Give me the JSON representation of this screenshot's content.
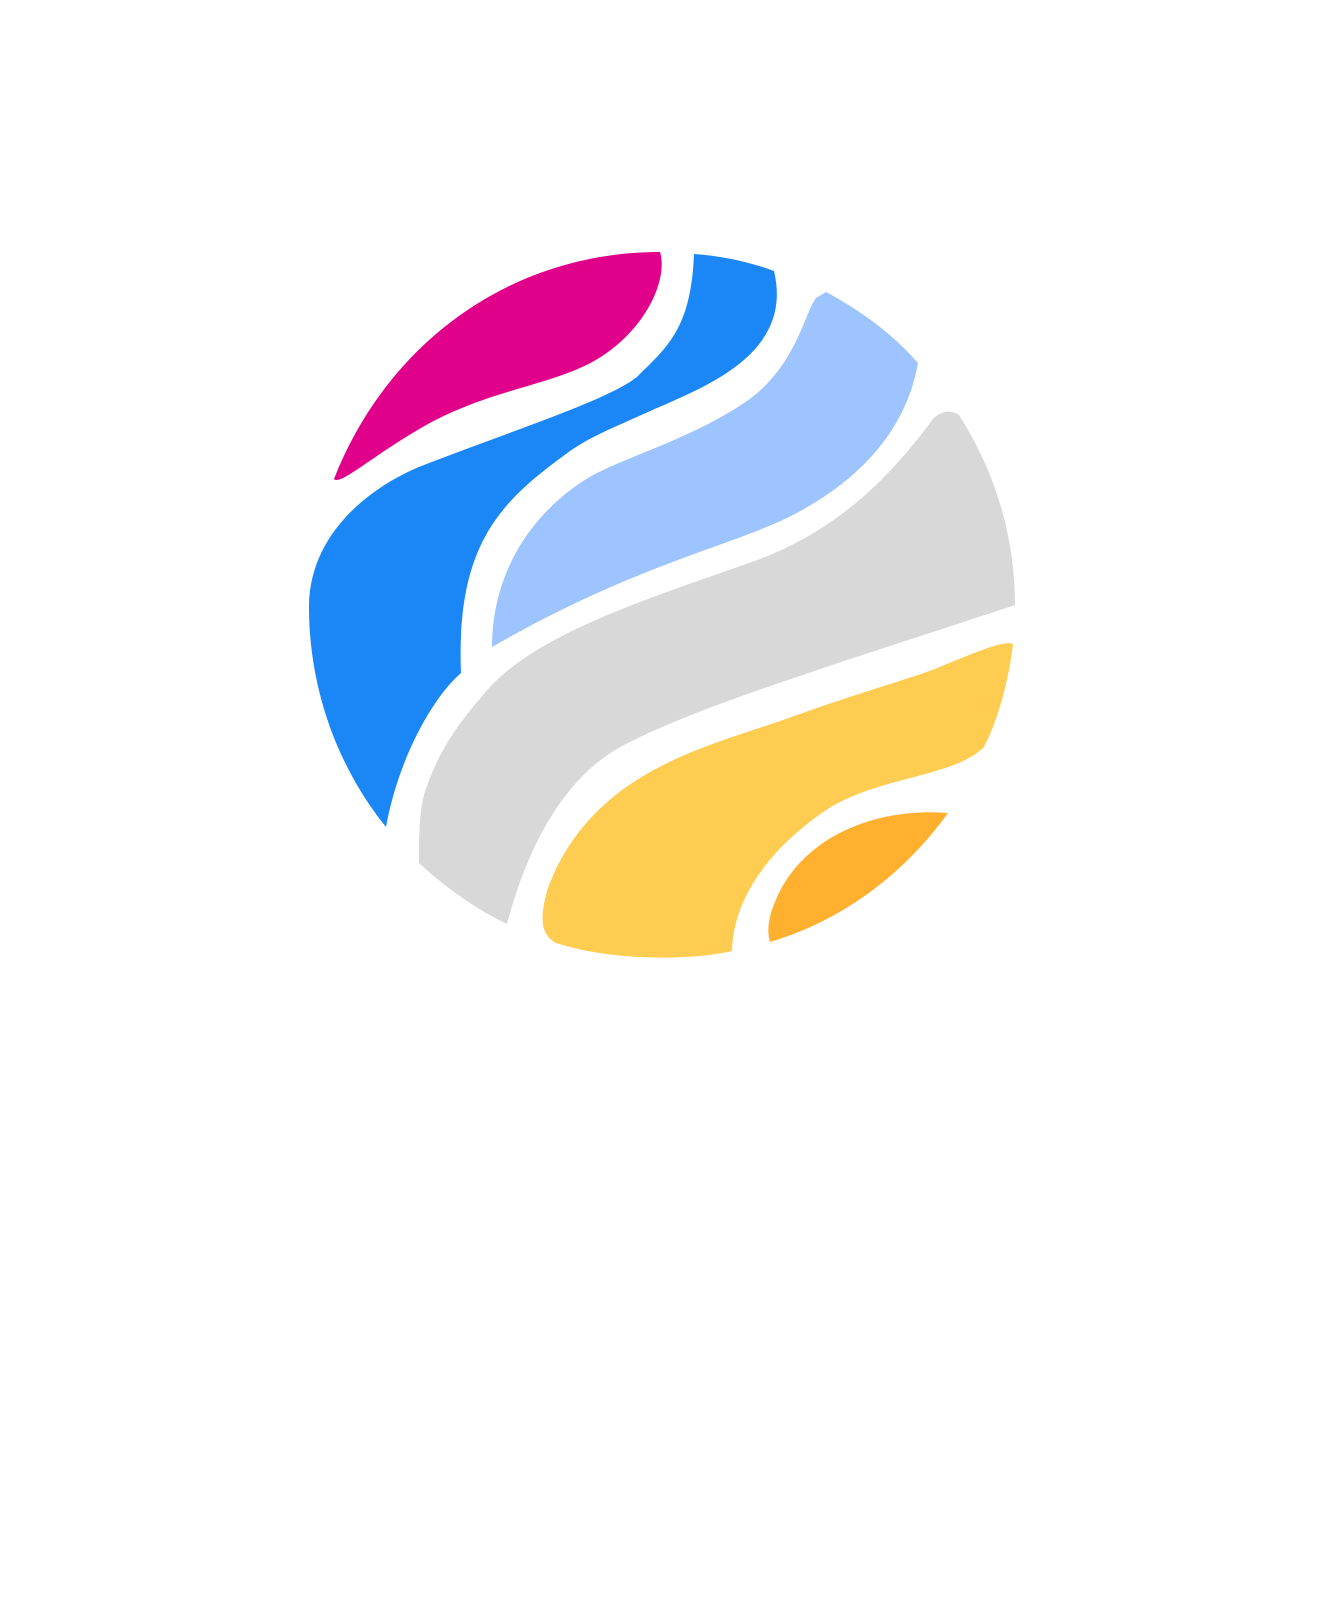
{
  "screen": {
    "background": "#ffffff"
  },
  "logo": {
    "icon": "striped-globe-icon",
    "colors": {
      "magenta_band": "#E0008A",
      "blue_band": "#1B87F6",
      "light_blue_band": "#9DC4FF",
      "gray_band": "#D8D8D8",
      "yellow_band": "#FFCC52",
      "orange_band": "#FFB02E"
    }
  }
}
